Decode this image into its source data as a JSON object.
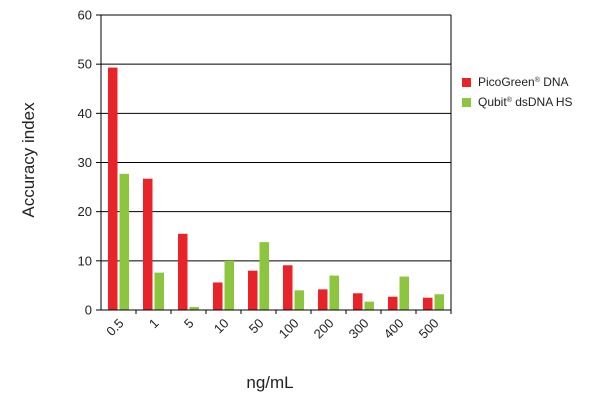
{
  "chart_data": {
    "type": "bar",
    "title": "",
    "xlabel": "ng/mL",
    "ylabel": "Accuracy index",
    "categories": [
      "0.5",
      "1",
      "5",
      "10",
      "50",
      "100",
      "200",
      "300",
      "400",
      "500"
    ],
    "ylim": [
      0,
      60
    ],
    "yticks": [
      0,
      10,
      20,
      30,
      40,
      50,
      60
    ],
    "grid": true,
    "legend_position": "right",
    "series": [
      {
        "name": "PicoGreen",
        "name_sup": "®",
        "name_suffix": " DNA",
        "color": "#e8232a",
        "values": [
          49.3,
          26.7,
          15.5,
          5.6,
          8.0,
          9.1,
          4.2,
          3.4,
          2.7,
          2.5
        ]
      },
      {
        "name": "Qubit",
        "name_sup": "®",
        "name_suffix": " dsDNA HS",
        "color": "#8cc63f",
        "values": [
          27.7,
          7.6,
          0.6,
          10.0,
          13.8,
          4.0,
          7.0,
          1.7,
          6.8,
          3.2
        ]
      }
    ]
  }
}
